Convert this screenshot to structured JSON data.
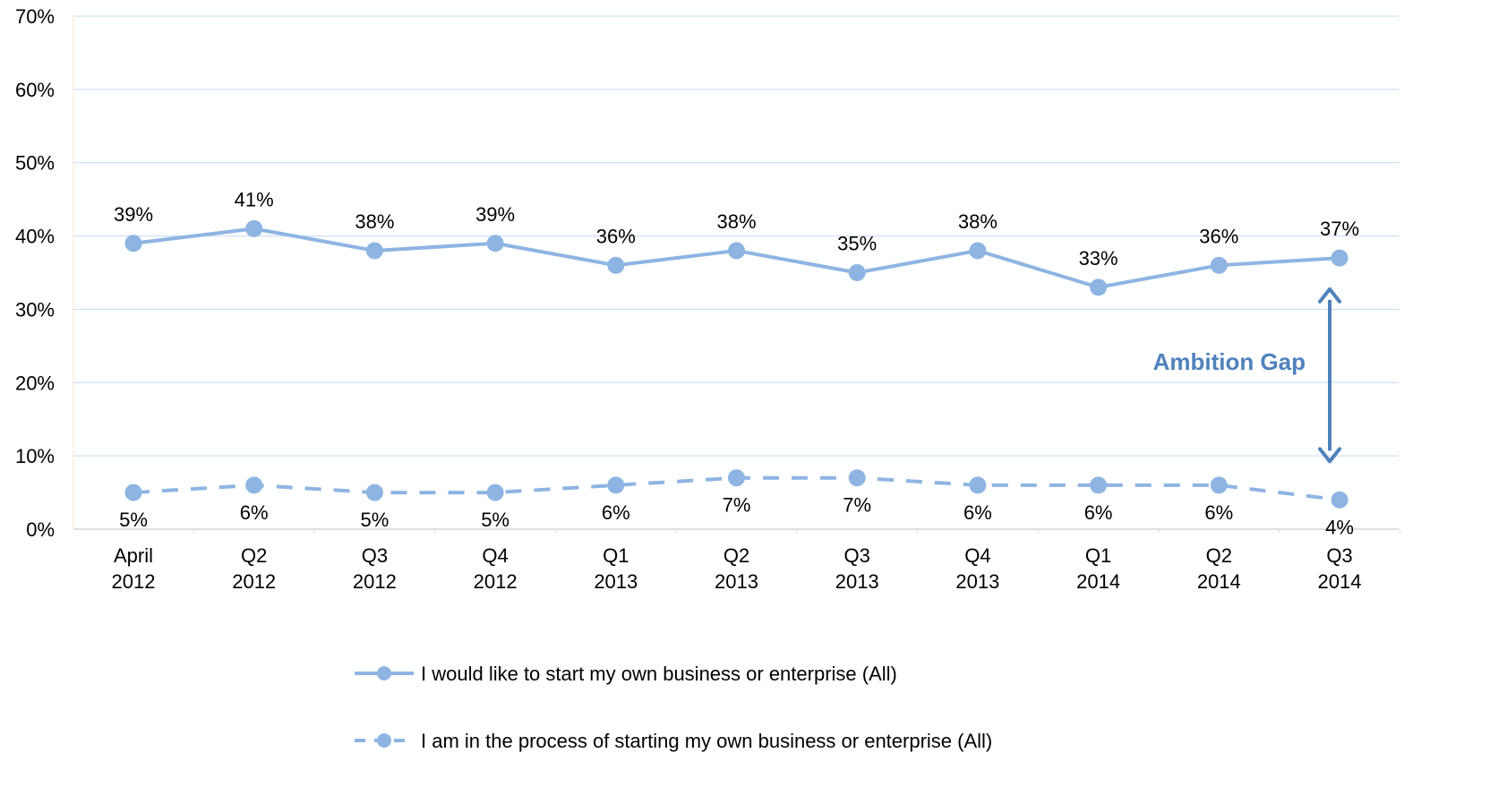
{
  "chart_data": {
    "type": "line",
    "title": "",
    "xlabel": "",
    "ylabel": "",
    "ylim": [
      0,
      70
    ],
    "y_tick_values": [
      0,
      10,
      20,
      30,
      40,
      50,
      60,
      70
    ],
    "y_tick_labels": [
      "0%",
      "10%",
      "20%",
      "30%",
      "40%",
      "50%",
      "60%",
      "70%"
    ],
    "categories": [
      [
        "April",
        "2012"
      ],
      [
        "Q2",
        "2012"
      ],
      [
        "Q3",
        "2012"
      ],
      [
        "Q4",
        "2012"
      ],
      [
        "Q1",
        "2013"
      ],
      [
        "Q2",
        "2013"
      ],
      [
        "Q3",
        "2013"
      ],
      [
        "Q4",
        "2013"
      ],
      [
        "Q1",
        "2014"
      ],
      [
        "Q2",
        "2014"
      ],
      [
        "Q3",
        "2014"
      ]
    ],
    "grid": true,
    "legend_position": "bottom",
    "series": [
      {
        "name": "I would like to start my own business or enterprise (All)",
        "style": "solid",
        "color": "#8EB4E3",
        "values": [
          39,
          41,
          38,
          39,
          36,
          38,
          35,
          38,
          33,
          36,
          37
        ],
        "labels": [
          "39%",
          "41%",
          "38%",
          "39%",
          "36%",
          "38%",
          "35%",
          "38%",
          "33%",
          "36%",
          "37%"
        ],
        "label_position": "above"
      },
      {
        "name": "I am in the process of starting my own business or enterprise (All)",
        "style": "dashed",
        "color": "#8EB4E3",
        "values": [
          5,
          6,
          5,
          5,
          6,
          7,
          7,
          6,
          6,
          6,
          4
        ],
        "labels": [
          "5%",
          "6%",
          "5%",
          "5%",
          "6%",
          "7%",
          "7%",
          "6%",
          "6%",
          "6%",
          "4%"
        ],
        "label_position": "below"
      }
    ],
    "annotation": {
      "text": "Ambition Gap",
      "color": "#4F81BD",
      "from_value": 33,
      "to_value": 9,
      "category_index": 10
    }
  }
}
